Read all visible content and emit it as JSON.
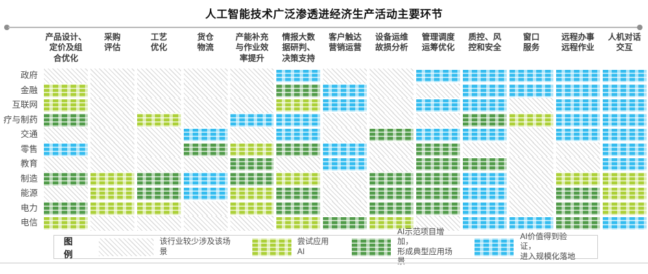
{
  "title": "人工智能技术广泛渗透进经济生产活动主要环节",
  "legend": {
    "caption": "图例",
    "items": [
      {
        "level": 0,
        "label": "该行业较少涉及该场景"
      },
      {
        "level": 1,
        "label": "尝试应用AI"
      },
      {
        "level": 2,
        "label": "AI示范项目增加，\n形成典型应用场景"
      },
      {
        "level": 3,
        "label": "AI价值得到验证，\n进入规模化落地"
      }
    ]
  },
  "chart_data": {
    "type": "heatmap",
    "title": "人工智能技术广泛渗透进经济生产活动主要环节",
    "legend_position": "bottom",
    "levels": [
      {
        "id": 0,
        "label": "该行业较少涉及该场景",
        "color": "#dadada",
        "pattern": "diagonal-hatch"
      },
      {
        "id": 1,
        "label": "尝试应用AI",
        "color": "#a8cd2d",
        "pattern": "gingham"
      },
      {
        "id": 2,
        "label": "AI示范项目增加，形成典型应用场景",
        "color": "#489640",
        "pattern": "gingham"
      },
      {
        "id": 3,
        "label": "AI价值得到验证，进入规模化落地",
        "color": "#29b9ee",
        "pattern": "gingham"
      }
    ],
    "columns": [
      "产品设计、\n定价及组\n合优化",
      "采购\n评估",
      "工艺\n优化",
      "货仓\n物流",
      "产能补充\n与作业效\n率提升",
      "情报大数\n据研判、\n决策支持",
      "客户触达\n营销运营",
      "设备运维\n故损分析",
      "管理调度\n运筹优化",
      "质控、风\n控和安全",
      "窗口\n服务",
      "远程办事\n远程作业",
      "人机对话\n交互"
    ],
    "rows": [
      "政府",
      "金融",
      "互联网",
      "疗与制药",
      "交通",
      "零售",
      "教育",
      "制造",
      "能源",
      "电力",
      "电信"
    ],
    "matrix": [
      [
        0,
        0,
        0,
        0,
        0,
        3,
        0,
        0,
        3,
        3,
        3,
        3,
        3
      ],
      [
        1,
        0,
        0,
        0,
        0,
        2,
        3,
        0,
        0,
        3,
        3,
        3,
        3
      ],
      [
        1,
        0,
        0,
        0,
        0,
        1,
        3,
        0,
        3,
        3,
        0,
        3,
        3
      ],
      [
        2,
        0,
        1,
        0,
        3,
        3,
        0,
        0,
        0,
        2,
        1,
        3,
        3
      ],
      [
        0,
        0,
        0,
        3,
        0,
        3,
        0,
        2,
        3,
        3,
        0,
        3,
        3
      ],
      [
        3,
        0,
        0,
        2,
        1,
        2,
        3,
        0,
        2,
        0,
        0,
        0,
        3
      ],
      [
        0,
        0,
        0,
        0,
        2,
        0,
        3,
        0,
        2,
        2,
        0,
        0,
        3
      ],
      [
        2,
        1,
        2,
        3,
        2,
        1,
        0,
        2,
        2,
        3,
        0,
        1,
        1
      ],
      [
        0,
        1,
        2,
        3,
        1,
        2,
        0,
        2,
        2,
        3,
        0,
        2,
        1
      ],
      [
        2,
        1,
        1,
        0,
        1,
        2,
        0,
        2,
        2,
        3,
        0,
        2,
        1
      ],
      [
        1,
        0,
        0,
        0,
        0,
        1,
        2,
        1,
        0,
        3,
        3,
        2,
        3
      ]
    ]
  }
}
